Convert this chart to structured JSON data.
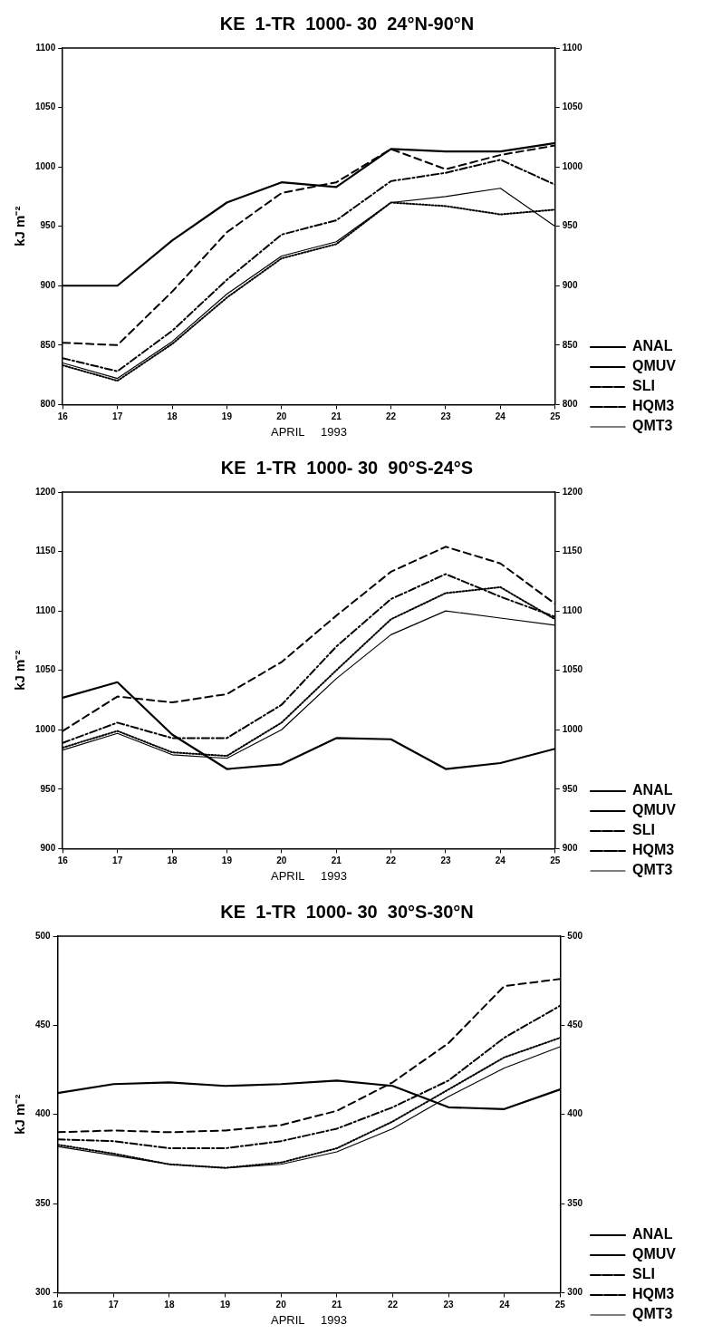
{
  "chart_data": [
    {
      "type": "line",
      "title": "KE  1-TR  1000- 30  24°N-90°N",
      "xlabel": "APRIL     1993",
      "ylabel": "kJ m⁻²",
      "x": [
        16,
        17,
        18,
        19,
        20,
        21,
        22,
        23,
        24,
        25
      ],
      "xlim": [
        16,
        25
      ],
      "xticks": [
        16,
        17,
        18,
        19,
        20,
        21,
        22,
        23,
        24,
        25
      ],
      "ylim": [
        800,
        1100
      ],
      "yticks": [
        800,
        850,
        900,
        950,
        1000,
        1050,
        1100
      ],
      "y2lim": [
        800,
        1100
      ],
      "y2ticks": [
        800,
        850,
        900,
        950,
        1000,
        1050,
        1100
      ],
      "grid": false,
      "legend": "right",
      "series": [
        {
          "name": "ANAL",
          "color": "#000000",
          "line_style": "solid",
          "values": [
            900,
            900,
            938,
            970,
            987,
            983,
            1015,
            1013,
            1013,
            1020
          ]
        },
        {
          "name": "QMUV",
          "color": "#000000",
          "line_style": "dotted",
          "values": [
            833,
            820,
            851,
            890,
            923,
            935,
            970,
            967,
            960,
            964
          ]
        },
        {
          "name": "SLI",
          "color": "#000000",
          "line_style": "dashed",
          "values": [
            852,
            850,
            895,
            945,
            978,
            987,
            1015,
            998,
            1010,
            1018
          ]
        },
        {
          "name": "HQM3",
          "color": "#000000",
          "line_style": "dashdot",
          "values": [
            839,
            828,
            862,
            905,
            943,
            955,
            988,
            995,
            1006,
            985
          ]
        },
        {
          "name": "QMT3",
          "color": "#000000",
          "line_style": "solid",
          "values": [
            835,
            822,
            853,
            893,
            925,
            937,
            970,
            975,
            982,
            950
          ]
        }
      ]
    },
    {
      "type": "line",
      "title": "KE  1-TR  1000- 30  90°S-24°S",
      "xlabel": "APRIL     1993",
      "ylabel": "kJ m⁻²",
      "x": [
        16,
        17,
        18,
        19,
        20,
        21,
        22,
        23,
        24,
        25
      ],
      "xlim": [
        16,
        25
      ],
      "xticks": [
        16,
        17,
        18,
        19,
        20,
        21,
        22,
        23,
        24,
        25
      ],
      "ylim": [
        900,
        1200
      ],
      "yticks": [
        900,
        950,
        1000,
        1050,
        1100,
        1150,
        1200
      ],
      "y2lim": [
        900,
        1200
      ],
      "y2ticks": [
        900,
        950,
        1000,
        1050,
        1100,
        1150,
        1200
      ],
      "grid": false,
      "legend": "right",
      "series": [
        {
          "name": "ANAL",
          "color": "#000000",
          "line_style": "solid",
          "values": [
            1027,
            1040,
            996,
            967,
            971,
            993,
            992,
            967,
            972,
            984
          ]
        },
        {
          "name": "QMUV",
          "color": "#000000",
          "line_style": "dotted",
          "values": [
            985,
            999,
            981,
            978,
            1006,
            1050,
            1093,
            1115,
            1120,
            1093
          ]
        },
        {
          "name": "SLI",
          "color": "#000000",
          "line_style": "dashed",
          "values": [
            999,
            1028,
            1023,
            1030,
            1057,
            1096,
            1133,
            1154,
            1140,
            1106
          ]
        },
        {
          "name": "HQM3",
          "color": "#000000",
          "line_style": "dashdot",
          "values": [
            989,
            1006,
            993,
            993,
            1021,
            1070,
            1110,
            1131,
            1112,
            1095
          ]
        },
        {
          "name": "QMT3",
          "color": "#000000",
          "line_style": "solid",
          "values": [
            983,
            997,
            979,
            976,
            1000,
            1043,
            1080,
            1100,
            1094,
            1088
          ]
        }
      ]
    },
    {
      "type": "line",
      "title": "KE  1-TR  1000- 30  30°S-30°N",
      "xlabel": "APRIL     1993",
      "ylabel": "kJ m⁻²",
      "x": [
        16,
        17,
        18,
        19,
        20,
        21,
        22,
        23,
        24,
        25
      ],
      "xlim": [
        16,
        25
      ],
      "xticks": [
        16,
        17,
        18,
        19,
        20,
        21,
        22,
        23,
        24,
        25
      ],
      "ylim": [
        300,
        500
      ],
      "yticks": [
        300,
        350,
        400,
        450,
        500
      ],
      "y2lim": [
        300,
        500
      ],
      "y2ticks": [
        300,
        350,
        400,
        450,
        500
      ],
      "grid": false,
      "legend": "right",
      "series": [
        {
          "name": "ANAL",
          "color": "#000000",
          "line_style": "solid",
          "values": [
            412,
            417,
            418,
            416,
            417,
            419,
            416,
            404,
            403,
            414
          ]
        },
        {
          "name": "QMUV",
          "color": "#000000",
          "line_style": "dotted",
          "values": [
            383,
            378,
            372,
            370,
            373,
            381,
            396,
            414,
            432,
            443
          ]
        },
        {
          "name": "SLI",
          "color": "#000000",
          "line_style": "dashed",
          "values": [
            390,
            391,
            390,
            391,
            394,
            402,
            418,
            440,
            472,
            476
          ]
        },
        {
          "name": "HQM3",
          "color": "#000000",
          "line_style": "dashdot",
          "values": [
            386,
            385,
            381,
            381,
            385,
            392,
            404,
            419,
            443,
            461
          ]
        },
        {
          "name": "QMT3",
          "color": "#000000",
          "line_style": "solid",
          "values": [
            382,
            377,
            372,
            370,
            372,
            379,
            392,
            410,
            426,
            438
          ]
        }
      ]
    }
  ]
}
